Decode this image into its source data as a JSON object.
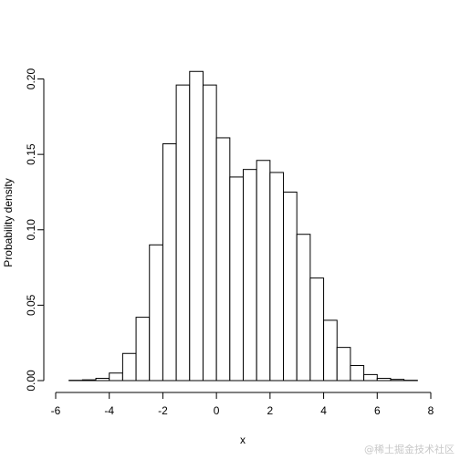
{
  "chart_data": {
    "type": "bar",
    "title": "",
    "xlabel": "x",
    "ylabel": "Probability density",
    "xlim": [
      -6,
      8
    ],
    "ylim": [
      0,
      0.21
    ],
    "grid": false,
    "legend": "none",
    "x_ticks": [
      -6,
      -4,
      -2,
      0,
      2,
      4,
      6,
      8
    ],
    "y_ticks": [
      0.0,
      0.05,
      0.1,
      0.15,
      0.2
    ],
    "y_tick_labels": [
      "0.00",
      "0.05",
      "0.10",
      "0.15",
      "0.20"
    ],
    "bin_width": 0.5,
    "bins": [
      {
        "x0": -5.5,
        "x1": -5.0,
        "density": 0.0002
      },
      {
        "x0": -5.0,
        "x1": -4.5,
        "density": 0.0005
      },
      {
        "x0": -4.5,
        "x1": -4.0,
        "density": 0.0015
      },
      {
        "x0": -4.0,
        "x1": -3.5,
        "density": 0.005
      },
      {
        "x0": -3.5,
        "x1": -3.0,
        "density": 0.018
      },
      {
        "x0": -3.0,
        "x1": -2.5,
        "density": 0.042
      },
      {
        "x0": -2.5,
        "x1": -2.0,
        "density": 0.09
      },
      {
        "x0": -2.0,
        "x1": -1.5,
        "density": 0.157
      },
      {
        "x0": -1.5,
        "x1": -1.0,
        "density": 0.196
      },
      {
        "x0": -1.0,
        "x1": -0.5,
        "density": 0.205
      },
      {
        "x0": -0.5,
        "x1": 0.0,
        "density": 0.196
      },
      {
        "x0": 0.0,
        "x1": 0.5,
        "density": 0.161
      },
      {
        "x0": 0.5,
        "x1": 1.0,
        "density": 0.135
      },
      {
        "x0": 1.0,
        "x1": 1.5,
        "density": 0.14
      },
      {
        "x0": 1.5,
        "x1": 2.0,
        "density": 0.146
      },
      {
        "x0": 2.0,
        "x1": 2.5,
        "density": 0.138
      },
      {
        "x0": 2.5,
        "x1": 3.0,
        "density": 0.125
      },
      {
        "x0": 3.0,
        "x1": 3.5,
        "density": 0.097
      },
      {
        "x0": 3.5,
        "x1": 4.0,
        "density": 0.068
      },
      {
        "x0": 4.0,
        "x1": 4.5,
        "density": 0.04
      },
      {
        "x0": 4.5,
        "x1": 5.0,
        "density": 0.022
      },
      {
        "x0": 5.0,
        "x1": 5.5,
        "density": 0.01
      },
      {
        "x0": 5.5,
        "x1": 6.0,
        "density": 0.004
      },
      {
        "x0": 6.0,
        "x1": 6.5,
        "density": 0.0015
      },
      {
        "x0": 6.5,
        "x1": 7.0,
        "density": 0.0008
      },
      {
        "x0": 7.0,
        "x1": 7.5,
        "density": 0.0002
      }
    ],
    "colors": {
      "bar_fill": "#ffffff",
      "bar_stroke": "#000000"
    }
  },
  "watermark": "@稀土掘金技术社区"
}
